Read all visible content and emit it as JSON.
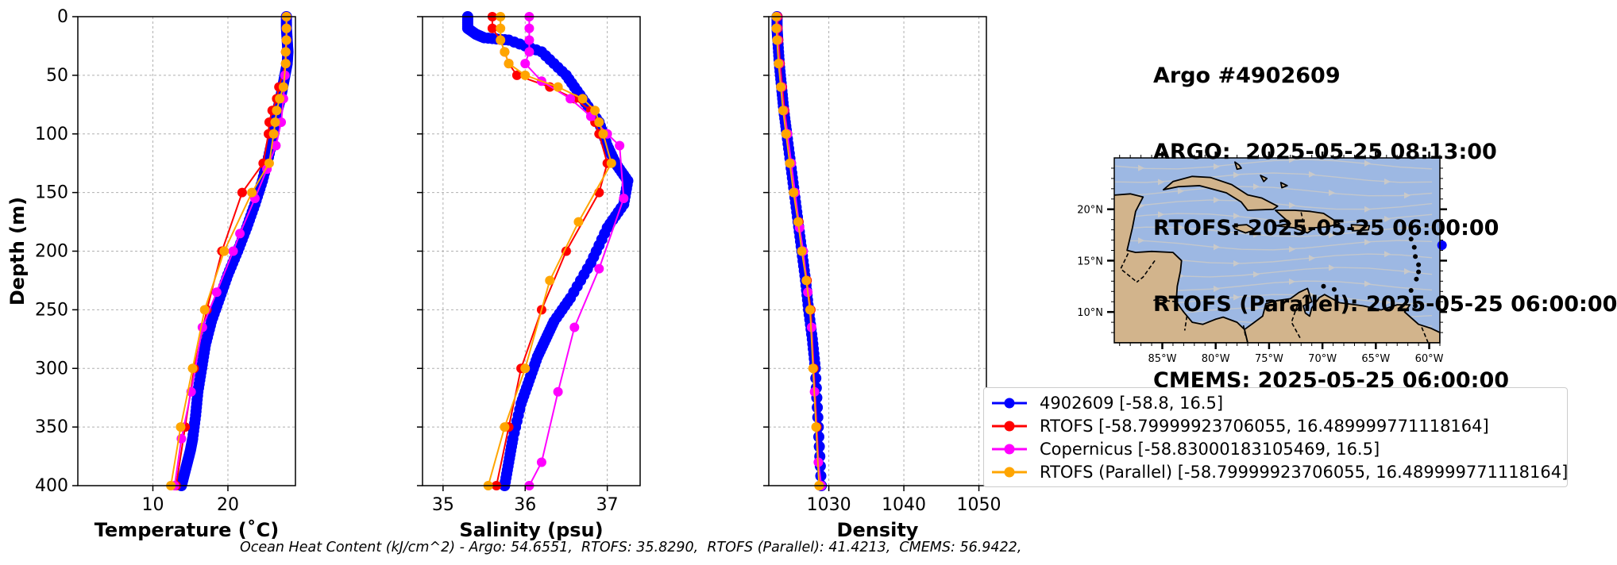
{
  "title": {
    "line1": "Argo #4902609",
    "line2": "ARGO:  2025-05-25 08:13:00",
    "line3": "RTOFS: 2025-05-25 06:00:00",
    "line4": "RTOFS (Parallel): 2025-05-25 06:00:00",
    "line5": "CMEMS: 2025-05-25 06:00:00"
  },
  "footnote": "Ocean Heat Content (kJ/cm^2) - Argo: 54.6551,  RTOFS: 35.8290,  RTOFS (Parallel): 41.4213,  CMEMS: 56.9422,",
  "colors": {
    "argo": "#0000ff",
    "rtofs": "#ff0000",
    "copernicus": "#ff00ff",
    "parallel": "#ffa500",
    "ocean": "#9db8e3",
    "land": "#d2b48c",
    "stream": "#c9c9c9"
  },
  "legend": [
    {
      "label": "4902609 [-58.8, 16.5]",
      "color": "#0000ff"
    },
    {
      "label": "RTOFS [-58.79999923706055, 16.489999771118164]",
      "color": "#ff0000"
    },
    {
      "label": "Copernicus [-58.83000183105469, 16.5]",
      "color": "#ff00ff"
    },
    {
      "label": "RTOFS (Parallel) [-58.79999923706055, 16.489999771118164]",
      "color": "#ffa500"
    }
  ],
  "chart_data": [
    {
      "type": "line",
      "panel": "temperature",
      "xlabel": "Temperature (˚C)",
      "ylabel": "Depth (m)",
      "xlim": [
        0,
        29
      ],
      "ylim": [
        400,
        0
      ],
      "xticks": [
        10,
        20
      ],
      "yticks": [
        0,
        50,
        100,
        150,
        200,
        250,
        300,
        350,
        400
      ],
      "grid": true,
      "series": [
        {
          "name": "4902609 [-58.8, 16.5]",
          "color": "#0000ff",
          "dense": true,
          "x": [
            27.8,
            27.8,
            27.9,
            28.0,
            27.9,
            27.6,
            27.3,
            27.0,
            26.6,
            26.1,
            25.4,
            24.6,
            23.6,
            22.5,
            21.3,
            20.0,
            18.9,
            17.8,
            17.0,
            16.5,
            16.0,
            15.7,
            15.3,
            15.0,
            14.6,
            14.2,
            13.8
          ],
          "y": [
            0,
            10,
            20,
            30,
            40,
            50,
            60,
            70,
            80,
            100,
            120,
            140,
            160,
            180,
            200,
            220,
            240,
            260,
            280,
            300,
            320,
            340,
            360,
            370,
            380,
            390,
            400
          ]
        },
        {
          "name": "RTOFS [-58.79999923706055, 16.489999771118164]",
          "color": "#ff0000",
          "x": [
            27.8,
            27.8,
            27.8,
            27.7,
            27.7,
            26.8,
            26.5,
            25.9,
            25.5,
            25.4,
            24.7,
            21.9,
            19.2,
            17.2,
            15.5,
            14.3,
            13.1
          ],
          "y": [
            0,
            10,
            20,
            30,
            40,
            60,
            70,
            80,
            90,
            100,
            125,
            150,
            200,
            250,
            300,
            350,
            400
          ]
        },
        {
          "name": "Copernicus [-58.83000183105469, 16.5]",
          "color": "#ff00ff",
          "x": [
            27.8,
            27.8,
            27.8,
            27.7,
            27.6,
            27.4,
            27.1,
            26.4,
            25.2,
            23.6,
            21.6,
            20.7,
            18.5,
            16.6,
            15.1,
            13.8,
            12.9
          ],
          "y": [
            0,
            10,
            20,
            30,
            50,
            70,
            90,
            110,
            130,
            155,
            185,
            200,
            235,
            265,
            320,
            360,
            400
          ]
        },
        {
          "name": "RTOFS (Parallel) [-58.79999923706055, 16.489999771118164]",
          "color": "#ffa500",
          "x": [
            27.8,
            27.8,
            27.8,
            27.7,
            27.7,
            27.4,
            26.9,
            26.5,
            26.3,
            26.1,
            25.5,
            23.2,
            19.5,
            16.9,
            15.3,
            13.7,
            12.4
          ],
          "y": [
            0,
            10,
            20,
            30,
            40,
            60,
            70,
            80,
            90,
            100,
            125,
            150,
            200,
            250,
            300,
            350,
            400
          ]
        }
      ]
    },
    {
      "type": "line",
      "panel": "salinity",
      "xlabel": "Salinity (psu)",
      "xlim": [
        34.75,
        37.4
      ],
      "ylim": [
        400,
        0
      ],
      "xticks": [
        35,
        36,
        37
      ],
      "grid": true,
      "series": [
        {
          "name": "4902609 [-58.8, 16.5]",
          "color": "#0000ff",
          "dense": true,
          "x": [
            35.3,
            35.3,
            35.4,
            35.5,
            35.8,
            36.2,
            36.5,
            36.7,
            36.9,
            37.0,
            37.1,
            37.25,
            37.2,
            37.0,
            36.8,
            36.55,
            36.35,
            36.25,
            36.15,
            36.05,
            35.95,
            35.85,
            35.8,
            35.75
          ],
          "y": [
            0,
            10,
            15,
            18,
            20,
            30,
            50,
            70,
            90,
            110,
            125,
            140,
            160,
            180,
            210,
            240,
            260,
            275,
            290,
            310,
            330,
            360,
            380,
            400
          ]
        },
        {
          "name": "RTOFS [-58.79999923706055, 16.489999771118164]",
          "color": "#ff0000",
          "x": [
            35.6,
            35.6,
            35.7,
            35.75,
            35.8,
            35.9,
            36.3,
            36.6,
            36.8,
            36.85,
            36.9,
            37.0,
            36.9,
            36.5,
            36.2,
            35.95,
            35.8,
            35.65
          ],
          "y": [
            0,
            10,
            20,
            30,
            40,
            50,
            60,
            70,
            80,
            90,
            100,
            125,
            150,
            200,
            250,
            300,
            350,
            400
          ]
        },
        {
          "name": "Copernicus [-58.83000183105469, 16.5]",
          "color": "#ff00ff",
          "x": [
            36.05,
            36.05,
            36.05,
            36.05,
            36.0,
            36.2,
            36.55,
            36.8,
            37.0,
            37.15,
            37.2,
            36.9,
            36.6,
            36.4,
            36.2,
            36.05
          ],
          "y": [
            0,
            10,
            20,
            30,
            40,
            55,
            70,
            85,
            100,
            110,
            155,
            215,
            265,
            320,
            380,
            400
          ]
        },
        {
          "name": "RTOFS (Parallel) [-58.79999923706055, 16.489999771118164]",
          "color": "#ffa500",
          "x": [
            35.7,
            35.7,
            35.7,
            35.75,
            35.8,
            36.0,
            36.4,
            36.7,
            36.85,
            36.9,
            36.95,
            37.05,
            36.65,
            36.3,
            36.0,
            35.75,
            35.55
          ],
          "y": [
            0,
            10,
            20,
            30,
            40,
            50,
            60,
            70,
            80,
            90,
            100,
            125,
            175,
            225,
            300,
            350,
            400
          ]
        }
      ]
    },
    {
      "type": "line",
      "panel": "density",
      "xlabel": "Density",
      "xlim": [
        1022,
        1051
      ],
      "ylim": [
        400,
        0
      ],
      "xticks": [
        1030,
        1040,
        1050
      ],
      "grid": true,
      "series": [
        {
          "name": "4902609 [-58.8, 16.5]",
          "color": "#0000ff",
          "dense": true,
          "x": [
            1023.1,
            1023.1,
            1023.2,
            1023.4,
            1023.7,
            1024.0,
            1024.4,
            1024.9,
            1025.4,
            1025.9,
            1026.4,
            1026.9,
            1027.3,
            1027.8,
            1028.2,
            1028.6,
            1029.0
          ],
          "y": [
            0,
            10,
            20,
            40,
            60,
            80,
            100,
            125,
            150,
            175,
            200,
            225,
            250,
            275,
            300,
            350,
            400
          ]
        },
        {
          "name": "RTOFS [-58.79999923706055, 16.489999771118164]",
          "color": "#ff0000",
          "x": [
            1023.2,
            1023.2,
            1023.3,
            1023.5,
            1023.8,
            1024.1,
            1024.5,
            1024.9,
            1025.4,
            1026.0,
            1026.5,
            1027.1,
            1027.6,
            1028.0,
            1028.4,
            1028.8
          ],
          "y": [
            0,
            10,
            20,
            40,
            60,
            80,
            100,
            125,
            150,
            175,
            200,
            225,
            250,
            300,
            350,
            400
          ]
        },
        {
          "name": "Copernicus [-58.83000183105469, 16.5]",
          "color": "#ff00ff",
          "x": [
            1023.1,
            1023.1,
            1023.2,
            1023.4,
            1023.7,
            1024.0,
            1024.5,
            1025.0,
            1025.5,
            1026.1,
            1026.6,
            1027.2,
            1027.7,
            1028.1,
            1028.6,
            1029.0
          ],
          "y": [
            0,
            10,
            20,
            40,
            60,
            80,
            100,
            125,
            150,
            180,
            200,
            235,
            265,
            320,
            380,
            400
          ]
        },
        {
          "name": "RTOFS (Parallel) [-58.79999923706055, 16.489999771118164]",
          "color": "#ffa500",
          "x": [
            1023.0,
            1023.0,
            1023.1,
            1023.3,
            1023.6,
            1023.9,
            1024.3,
            1024.8,
            1025.3,
            1025.9,
            1026.4,
            1027.0,
            1027.5,
            1027.9,
            1028.3,
            1028.7
          ],
          "y": [
            0,
            10,
            20,
            40,
            60,
            80,
            100,
            125,
            150,
            175,
            200,
            225,
            250,
            300,
            350,
            400
          ]
        }
      ]
    }
  ],
  "map": {
    "lon_labels": [
      "85°W",
      "80°W",
      "75°W",
      "70°W",
      "65°W",
      "60°W"
    ],
    "lat_labels": [
      "20°N",
      "15°N",
      "10°N"
    ],
    "lon_range": [
      -89.5,
      -59.0
    ],
    "lat_range": [
      7.0,
      25.0
    ],
    "lon_ticks": [
      -85,
      -80,
      -75,
      -70,
      -65,
      -60
    ],
    "lat_ticks": [
      20,
      15,
      10
    ],
    "marker": {
      "lon": -58.8,
      "lat": 16.5,
      "color": "#0000ff"
    }
  }
}
